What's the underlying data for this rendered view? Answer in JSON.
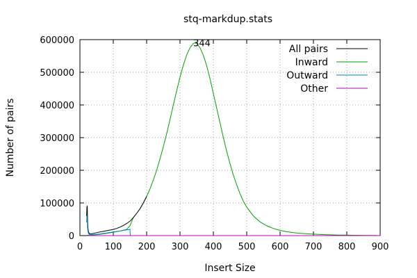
{
  "chart_data": {
    "type": "line",
    "title": "stq-markdup.stats",
    "xlabel": "Insert Size",
    "ylabel": "Number of pairs",
    "xlim": [
      0,
      900
    ],
    "ylim": [
      0,
      600000
    ],
    "xticks": [
      0,
      100,
      200,
      300,
      400,
      500,
      600,
      700,
      800,
      900
    ],
    "yticks": [
      0,
      100000,
      200000,
      300000,
      400000,
      500000,
      600000
    ],
    "grid": true,
    "legend_position": "top-right",
    "peak_label": "344",
    "peak": {
      "x": 344,
      "y": 590000
    },
    "series": [
      {
        "name": "All pairs",
        "color": "#000000",
        "x": [
          20,
          21,
          22,
          23,
          24,
          25,
          26,
          28,
          30,
          35,
          40,
          50,
          60,
          70,
          80,
          90,
          100,
          110,
          120,
          130,
          140,
          150,
          160,
          170,
          180,
          190,
          200
        ],
        "y": [
          60000,
          88000,
          90000,
          45000,
          25000,
          15000,
          10000,
          7000,
          6000,
          5500,
          6500,
          9000,
          11000,
          13000,
          15000,
          17000,
          19000,
          22000,
          26000,
          31000,
          37000,
          44000,
          55000,
          68000,
          82000,
          100000,
          120000
        ]
      },
      {
        "name": "Inward",
        "color": "#00a000",
        "x": [
          20,
          40,
          60,
          80,
          100,
          120,
          140,
          150,
          160,
          170,
          180,
          190,
          200,
          210,
          220,
          230,
          240,
          250,
          260,
          270,
          280,
          290,
          300,
          310,
          320,
          330,
          340,
          344,
          350,
          360,
          370,
          380,
          390,
          400,
          410,
          420,
          430,
          440,
          450,
          460,
          470,
          480,
          490,
          500,
          520,
          540,
          560,
          580,
          600,
          620,
          640,
          660,
          680,
          700,
          720,
          740,
          760,
          780,
          800,
          820,
          840,
          860,
          880,
          890
        ],
        "y": [
          1000,
          2000,
          4000,
          7000,
          10000,
          14000,
          19000,
          30000,
          55000,
          68000,
          82000,
          100000,
          120000,
          143000,
          170000,
          200000,
          235000,
          272000,
          312000,
          355000,
          400000,
          443000,
          485000,
          522000,
          553000,
          575000,
          588000,
          590000,
          588000,
          575000,
          552000,
          520000,
          480000,
          435000,
          390000,
          345000,
          300000,
          258000,
          220000,
          185000,
          155000,
          128000,
          105000,
          87000,
          60000,
          42000,
          30000,
          22000,
          16000,
          12000,
          9000,
          7000,
          5500,
          4500,
          3500,
          2800,
          2200,
          1800,
          1400,
          1100,
          900,
          700,
          500,
          400
        ]
      },
      {
        "name": "Outward",
        "color": "#0080c0",
        "x": [
          20,
          21,
          22,
          23,
          24,
          25,
          26,
          28,
          30,
          35,
          40,
          50,
          60,
          70,
          80,
          90,
          100,
          110,
          120,
          130,
          140,
          149,
          150,
          151
        ],
        "y": [
          40000,
          60000,
          50000,
          25000,
          15000,
          9000,
          6000,
          4000,
          3000,
          2500,
          3000,
          4000,
          5000,
          6500,
          8000,
          9500,
          11000,
          12500,
          14000,
          16000,
          17500,
          19000,
          19500,
          0
        ]
      },
      {
        "name": "Other",
        "color": "#c000c0",
        "x": [
          20,
          900
        ],
        "y": [
          0,
          0
        ]
      }
    ]
  }
}
